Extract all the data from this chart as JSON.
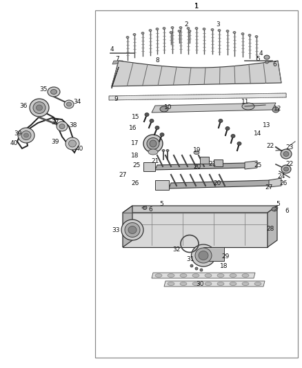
{
  "fig_width": 4.38,
  "fig_height": 5.33,
  "dpi": 100,
  "bg_color": "#ffffff"
}
